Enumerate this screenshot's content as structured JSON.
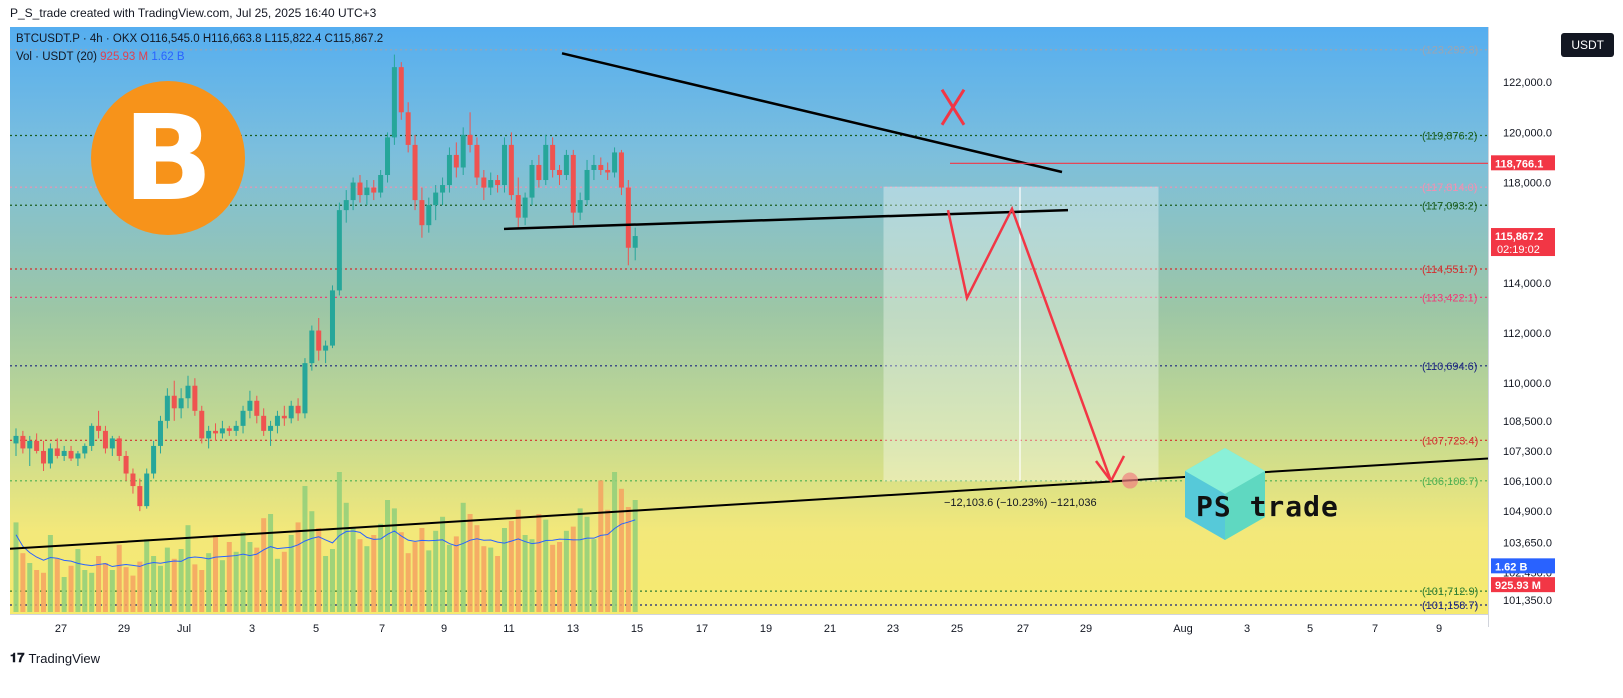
{
  "header": {
    "title": "P_S_trade created with TradingView.com, Jul 25, 2025 16:40 UTC+3"
  },
  "symbol": {
    "line1": "BTCUSDT.P · 4h · OKX  O116,545.0  H116,663.8  L115,822.4  C115,867.2",
    "vol_label": "Vol · USDT (20)",
    "vol_value": "925.93 M",
    "vol_ma": "1.62 B"
  },
  "currency_button": "USDT",
  "logos": {
    "bitcoin_glyph": "B",
    "ps_trade": "PS trade"
  },
  "footer": {
    "brand": "TradingView"
  },
  "measure_label": "−12,103.6 (−10.23%) −121,036",
  "colors": {
    "up": "#26a69a",
    "down": "#ef5350",
    "accent_red": "#f23645",
    "volume_up": "#8fcf7a",
    "volume_down": "#f4a261"
  },
  "chart_data": {
    "type": "candlestick",
    "title": "BTCUSDT.P · 4h · OKX",
    "ylim": [
      100800,
      124200
    ],
    "y_ticks": [
      "122,000.0",
      "120,000.0",
      "118,000.0",
      "114,000.0",
      "112,000.0",
      "110,000.0",
      "108,500.0",
      "107,300.0",
      "106,100.0",
      "104,900.0",
      "103,650.0",
      "102,450.0",
      "101,350.0"
    ],
    "x_ticks": [
      "27",
      "29",
      "Jul",
      "3",
      "5",
      "7",
      "9",
      "11",
      "13",
      "15",
      "17",
      "19",
      "21",
      "23",
      "25",
      "27",
      "29",
      "Aug",
      "3",
      "5",
      "7",
      "9"
    ],
    "levels": [
      {
        "label": "(123,293.3)",
        "value": 123293.3,
        "color": "#9aa5b4"
      },
      {
        "label": "(119,876.2)",
        "value": 119876.2,
        "color": "#1b5e20"
      },
      {
        "label": "(117,814.0)",
        "value": 117814.0,
        "color": "#f48fb1"
      },
      {
        "label": "(117,093.2)",
        "value": 117093.2,
        "color": "#1b5e20"
      },
      {
        "label": "(114,551.7)",
        "value": 114551.7,
        "color": "#d32f2f"
      },
      {
        "label": "(113,422.1)",
        "value": 113422.1,
        "color": "#ec407a"
      },
      {
        "label": "(110,694.6)",
        "value": 110694.6,
        "color": "#1a237e"
      },
      {
        "label": "(107,723.4)",
        "value": 107723.4,
        "color": "#d32f2f"
      },
      {
        "label": "(106,108.7)",
        "value": 106108.7,
        "color": "#4caf50"
      },
      {
        "label": "(101,712.9)",
        "value": 101712.9,
        "color": "#2e7d32"
      },
      {
        "label": "(101,158.7)",
        "value": 101158.7,
        "color": "#1a237e"
      }
    ],
    "price_tags": [
      {
        "label": "118,766.1",
        "value": 118766.1,
        "color": "#f23645"
      },
      {
        "label": "115,867.2",
        "value": 115867.2,
        "color": "#f23645",
        "sub": "02:19:02"
      },
      {
        "label": "1.62 B",
        "value": 102700,
        "color": "#2962ff"
      },
      {
        "label": "925.93 M",
        "value": 101950,
        "color": "#f23645"
      }
    ],
    "candles_ohlc": [
      [
        107600,
        108200,
        107100,
        107900
      ],
      [
        107900,
        108100,
        107200,
        107400
      ],
      [
        107400,
        107900,
        106700,
        107700
      ],
      [
        107700,
        108000,
        107200,
        107300
      ],
      [
        107300,
        107700,
        106500,
        106800
      ],
      [
        106800,
        107600,
        106600,
        107400
      ],
      [
        107400,
        107800,
        107000,
        107100
      ],
      [
        107100,
        107500,
        106900,
        107300
      ],
      [
        107300,
        107500,
        106900,
        107000
      ],
      [
        107000,
        107300,
        106700,
        107200
      ],
      [
        107200,
        107600,
        107000,
        107500
      ],
      [
        107500,
        108400,
        107300,
        108300
      ],
      [
        108300,
        108900,
        107800,
        108100
      ],
      [
        108100,
        108300,
        107200,
        107400
      ],
      [
        107400,
        107900,
        107100,
        107800
      ],
      [
        107800,
        107900,
        106900,
        107100
      ],
      [
        107100,
        107300,
        106100,
        106400
      ],
      [
        106400,
        106600,
        105600,
        105900
      ],
      [
        105900,
        106200,
        104900,
        105100
      ],
      [
        105100,
        106600,
        105000,
        106400
      ],
      [
        106400,
        107700,
        106200,
        107500
      ],
      [
        107500,
        108700,
        107200,
        108500
      ],
      [
        108500,
        109800,
        108200,
        109500
      ],
      [
        109500,
        110100,
        108500,
        109000
      ],
      [
        109000,
        109800,
        108600,
        109400
      ],
      [
        109400,
        110300,
        109000,
        109900
      ],
      [
        109900,
        110200,
        108700,
        108900
      ],
      [
        108900,
        109100,
        107600,
        107800
      ],
      [
        107800,
        108300,
        107400,
        108100
      ],
      [
        108100,
        108400,
        107700,
        108000
      ],
      [
        108000,
        108500,
        107800,
        108200
      ],
      [
        108200,
        108300,
        107900,
        108100
      ],
      [
        108100,
        108500,
        107900,
        108300
      ],
      [
        108300,
        109100,
        108000,
        108900
      ],
      [
        108900,
        109700,
        108600,
        109300
      ],
      [
        109300,
        109500,
        108400,
        108700
      ],
      [
        108700,
        109000,
        107900,
        108100
      ],
      [
        108100,
        108500,
        107500,
        108300
      ],
      [
        108300,
        108900,
        108000,
        108700
      ],
      [
        108700,
        109100,
        108300,
        108600
      ],
      [
        108600,
        109300,
        108400,
        109100
      ],
      [
        109100,
        109400,
        108500,
        108800
      ],
      [
        108800,
        111000,
        108600,
        110800
      ],
      [
        110800,
        112300,
        110500,
        112100
      ],
      [
        112100,
        112600,
        110900,
        111300
      ],
      [
        111300,
        111700,
        110800,
        111500
      ],
      [
        111500,
        113900,
        111400,
        113700
      ],
      [
        113700,
        117200,
        113500,
        116900
      ],
      [
        116900,
        117700,
        116400,
        117300
      ],
      [
        117300,
        118200,
        116900,
        118000
      ],
      [
        118000,
        118300,
        117200,
        117500
      ],
      [
        117500,
        118100,
        117100,
        117800
      ],
      [
        117800,
        118100,
        117300,
        117600
      ],
      [
        117600,
        118500,
        117400,
        118300
      ],
      [
        118300,
        120000,
        118000,
        119800
      ],
      [
        119800,
        123100,
        119500,
        122600
      ],
      [
        122600,
        122800,
        120500,
        120800
      ],
      [
        120800,
        121200,
        119200,
        119500
      ],
      [
        119500,
        119900,
        116900,
        117300
      ],
      [
        117300,
        117800,
        115800,
        116300
      ],
      [
        116300,
        117400,
        116000,
        117100
      ],
      [
        117100,
        117900,
        116500,
        117600
      ],
      [
        117600,
        118200,
        117100,
        117900
      ],
      [
        117900,
        119400,
        117600,
        119100
      ],
      [
        119100,
        119600,
        118200,
        118600
      ],
      [
        118600,
        120200,
        118300,
        119900
      ],
      [
        119900,
        120800,
        119200,
        119500
      ],
      [
        119500,
        119800,
        117900,
        118200
      ],
      [
        118200,
        118500,
        117300,
        117800
      ],
      [
        117800,
        118400,
        117500,
        118100
      ],
      [
        118100,
        118300,
        117600,
        117900
      ],
      [
        117900,
        119800,
        117600,
        119500
      ],
      [
        119500,
        120000,
        117300,
        117500
      ],
      [
        117500,
        118200,
        116200,
        116600
      ],
      [
        116600,
        117600,
        116300,
        117400
      ],
      [
        117400,
        118900,
        117100,
        118700
      ],
      [
        118700,
        119100,
        117800,
        118100
      ],
      [
        118100,
        119900,
        117900,
        119500
      ],
      [
        119500,
        119800,
        118200,
        118500
      ],
      [
        118500,
        118700,
        117900,
        118300
      ],
      [
        118300,
        119300,
        118100,
        119100
      ],
      [
        119100,
        119300,
        116300,
        116800
      ],
      [
        116800,
        117600,
        116500,
        117300
      ],
      [
        117300,
        118900,
        117100,
        118500
      ],
      [
        118500,
        119100,
        118100,
        118700
      ],
      [
        118700,
        119000,
        118300,
        118500
      ],
      [
        118500,
        118800,
        118100,
        118400
      ],
      [
        118400,
        119400,
        118200,
        119200
      ],
      [
        119200,
        119300,
        117500,
        117800
      ],
      [
        117800,
        118100,
        114700,
        115400
      ],
      [
        115400,
        116200,
        114900,
        115867
      ]
    ],
    "volume": [
      64,
      42,
      35,
      30,
      28,
      55,
      38,
      25,
      33,
      45,
      30,
      28,
      40,
      35,
      30,
      48,
      32,
      26,
      36,
      52,
      40,
      33,
      46,
      38,
      45,
      62,
      34,
      30,
      42,
      55,
      37,
      50,
      43,
      57,
      50,
      46,
      67,
      70,
      38,
      43,
      55,
      64,
      90,
      72,
      60,
      40,
      45,
      100,
      78,
      60,
      52,
      47,
      55,
      63,
      80,
      74,
      57,
      42,
      50,
      60,
      44,
      58,
      68,
      48,
      54,
      78,
      70,
      62,
      47,
      46,
      40,
      60,
      65,
      73,
      55,
      52,
      70,
      66,
      48,
      50,
      58,
      61,
      74,
      68,
      52,
      94,
      73,
      100,
      88,
      75,
      80
    ],
    "annotations": {
      "measure_value": -12103.6,
      "measure_percent": -10.23,
      "target": 106108.7
    }
  }
}
